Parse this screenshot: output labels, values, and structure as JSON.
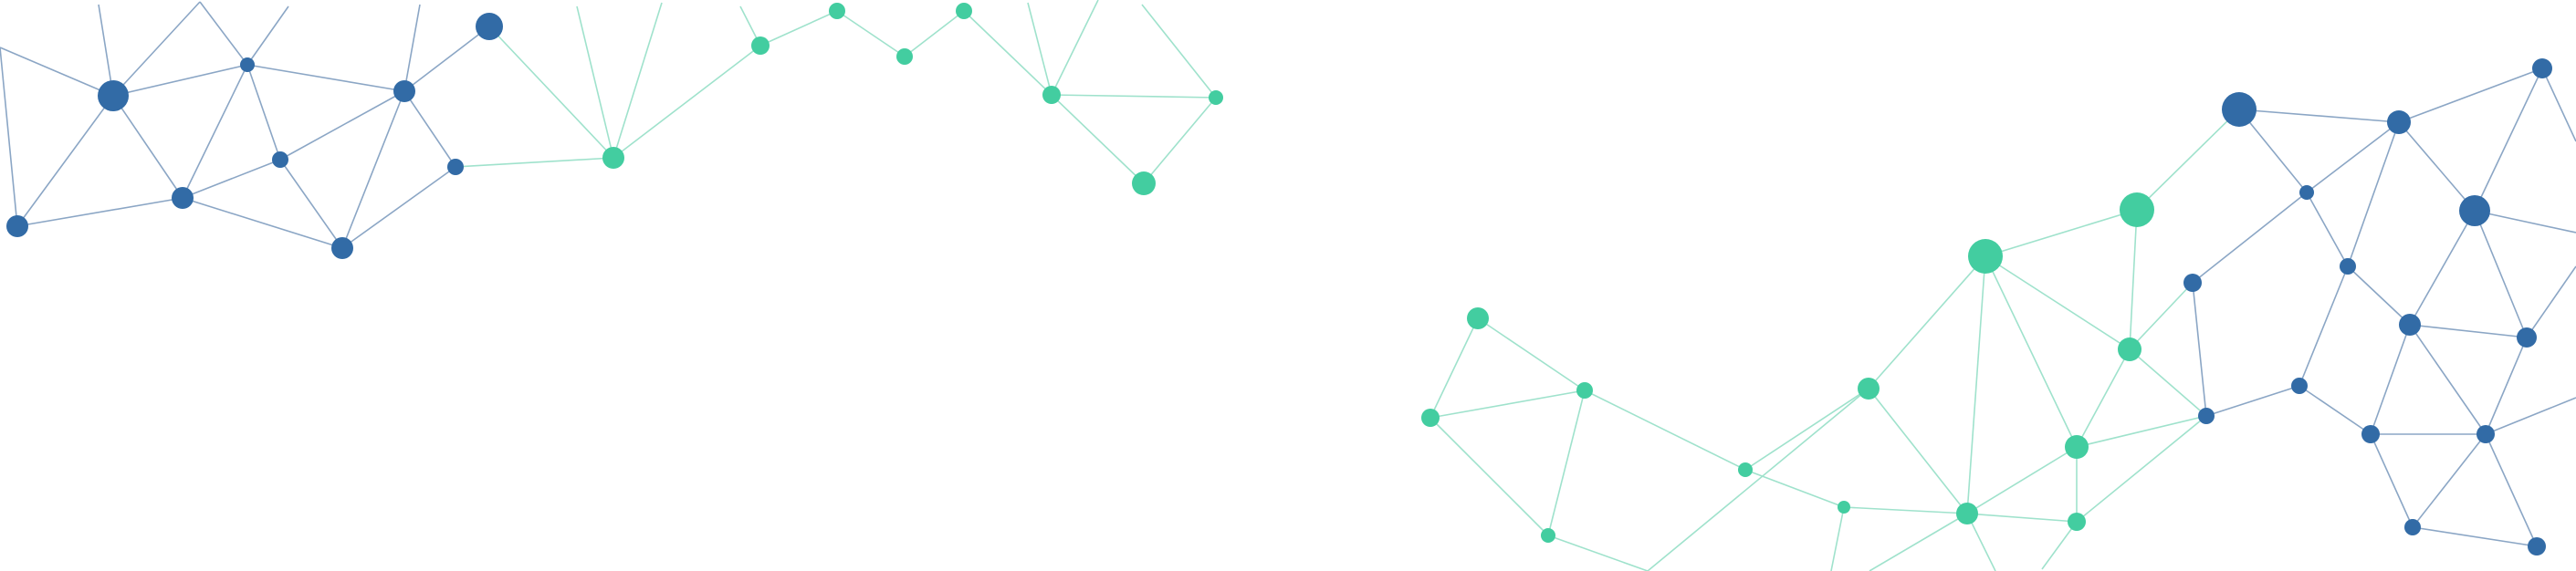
{
  "colors": {
    "background": "#ffffff",
    "blue_node": "#326ba6",
    "green_node": "#43cda0",
    "blue_line": "#8ba6c5",
    "green_line": "#9fe2cc"
  },
  "graphic": {
    "icon": "network-mesh-decoration"
  }
}
